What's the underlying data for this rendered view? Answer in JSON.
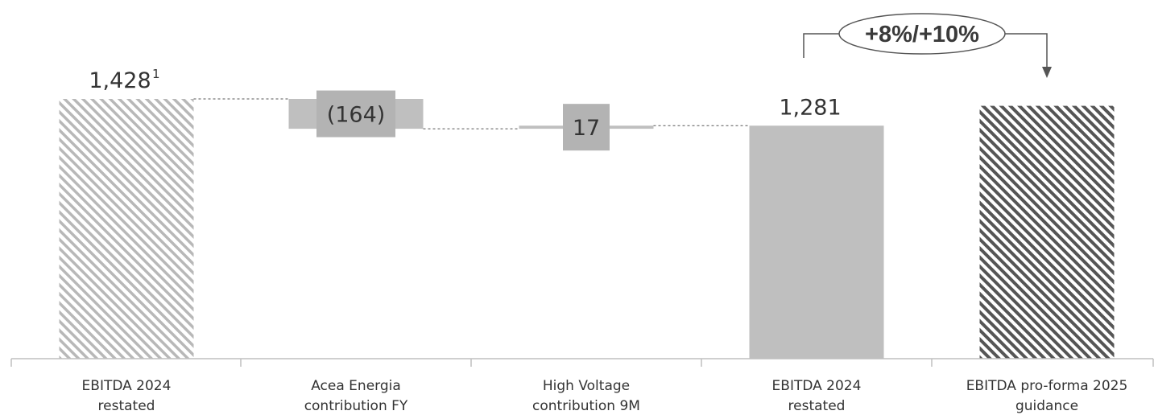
{
  "chart_data": {
    "type": "bar",
    "subtype": "waterfall",
    "title": "",
    "xlabel": "",
    "ylabel": "",
    "categories": [
      "EBITDA 2024\nrestated",
      "Acea Energia\ncontribution FY",
      "High Voltage\ncontribution 9M",
      "EBITDA 2024\nrestated",
      "EBITDA pro-forma 2025\nguidance"
    ],
    "bars": [
      {
        "kind": "total",
        "value": 1428,
        "label": "1,428",
        "footnote": "1",
        "fill": "hatch-light"
      },
      {
        "kind": "delta",
        "value": -164,
        "label": "(164)",
        "fill": "solid"
      },
      {
        "kind": "delta",
        "value": 17,
        "label": "17",
        "fill": "solid"
      },
      {
        "kind": "total",
        "value": 1281,
        "label": "1,281",
        "fill": "solid"
      },
      {
        "kind": "total",
        "value": 1390,
        "label": "",
        "fill": "hatch-dark"
      }
    ],
    "growth_annotation": {
      "text": "+8%/+10%",
      "from_index": 3,
      "to_index": 4
    },
    "grid": false,
    "legend": "none",
    "colors": {
      "solid": "#bfbfbf",
      "solid_box": "#b3b3b3",
      "hatch_light": "#b8b8b8",
      "hatch_dark": "#555555",
      "axis": "#bfbfbf",
      "connector": "#555555",
      "text": "#333333"
    }
  }
}
